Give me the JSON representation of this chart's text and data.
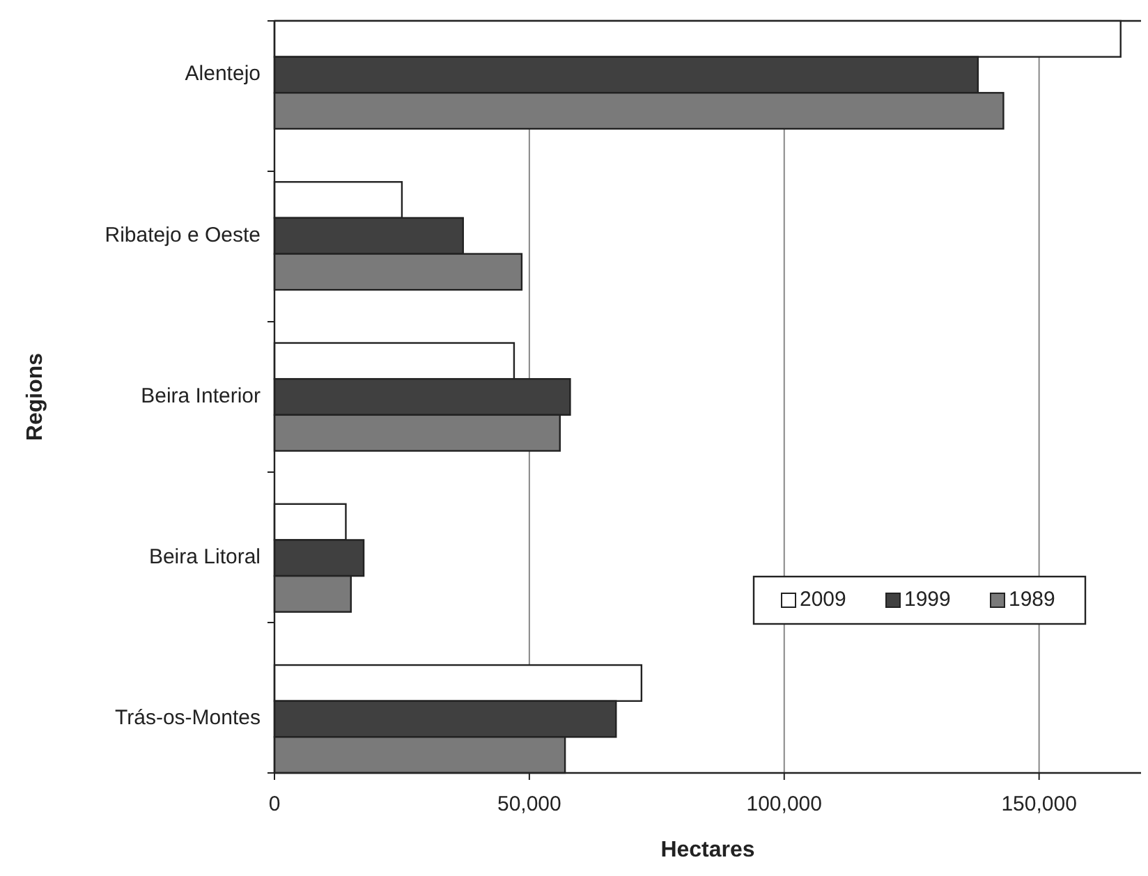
{
  "chart_data": {
    "type": "bar",
    "orientation": "horizontal",
    "xlabel": "Hectares",
    "ylabel": "Regions",
    "categories": [
      "Alentejo",
      "Ribatejo e Oeste",
      "Beira Interior",
      "Beira Litoral",
      "Trás-os-Montes"
    ],
    "series": [
      {
        "name": "2009",
        "color": "#ffffff",
        "values": [
          166000,
          25000,
          47000,
          14000,
          72000
        ]
      },
      {
        "name": "1999",
        "color": "#404040",
        "values": [
          138000,
          37000,
          58000,
          17500,
          67000
        ]
      },
      {
        "name": "1989",
        "color": "#7a7a7a",
        "values": [
          143000,
          48500,
          56000,
          15000,
          57000
        ]
      }
    ],
    "xlim": [
      0,
      170000
    ],
    "xticks": [
      {
        "value": 0,
        "label": "0"
      },
      {
        "value": 50000,
        "label": "50,000"
      },
      {
        "value": 100000,
        "label": "100,000"
      },
      {
        "value": 150000,
        "label": "150,000"
      }
    ],
    "grid": "x",
    "legend": "bottom right"
  }
}
